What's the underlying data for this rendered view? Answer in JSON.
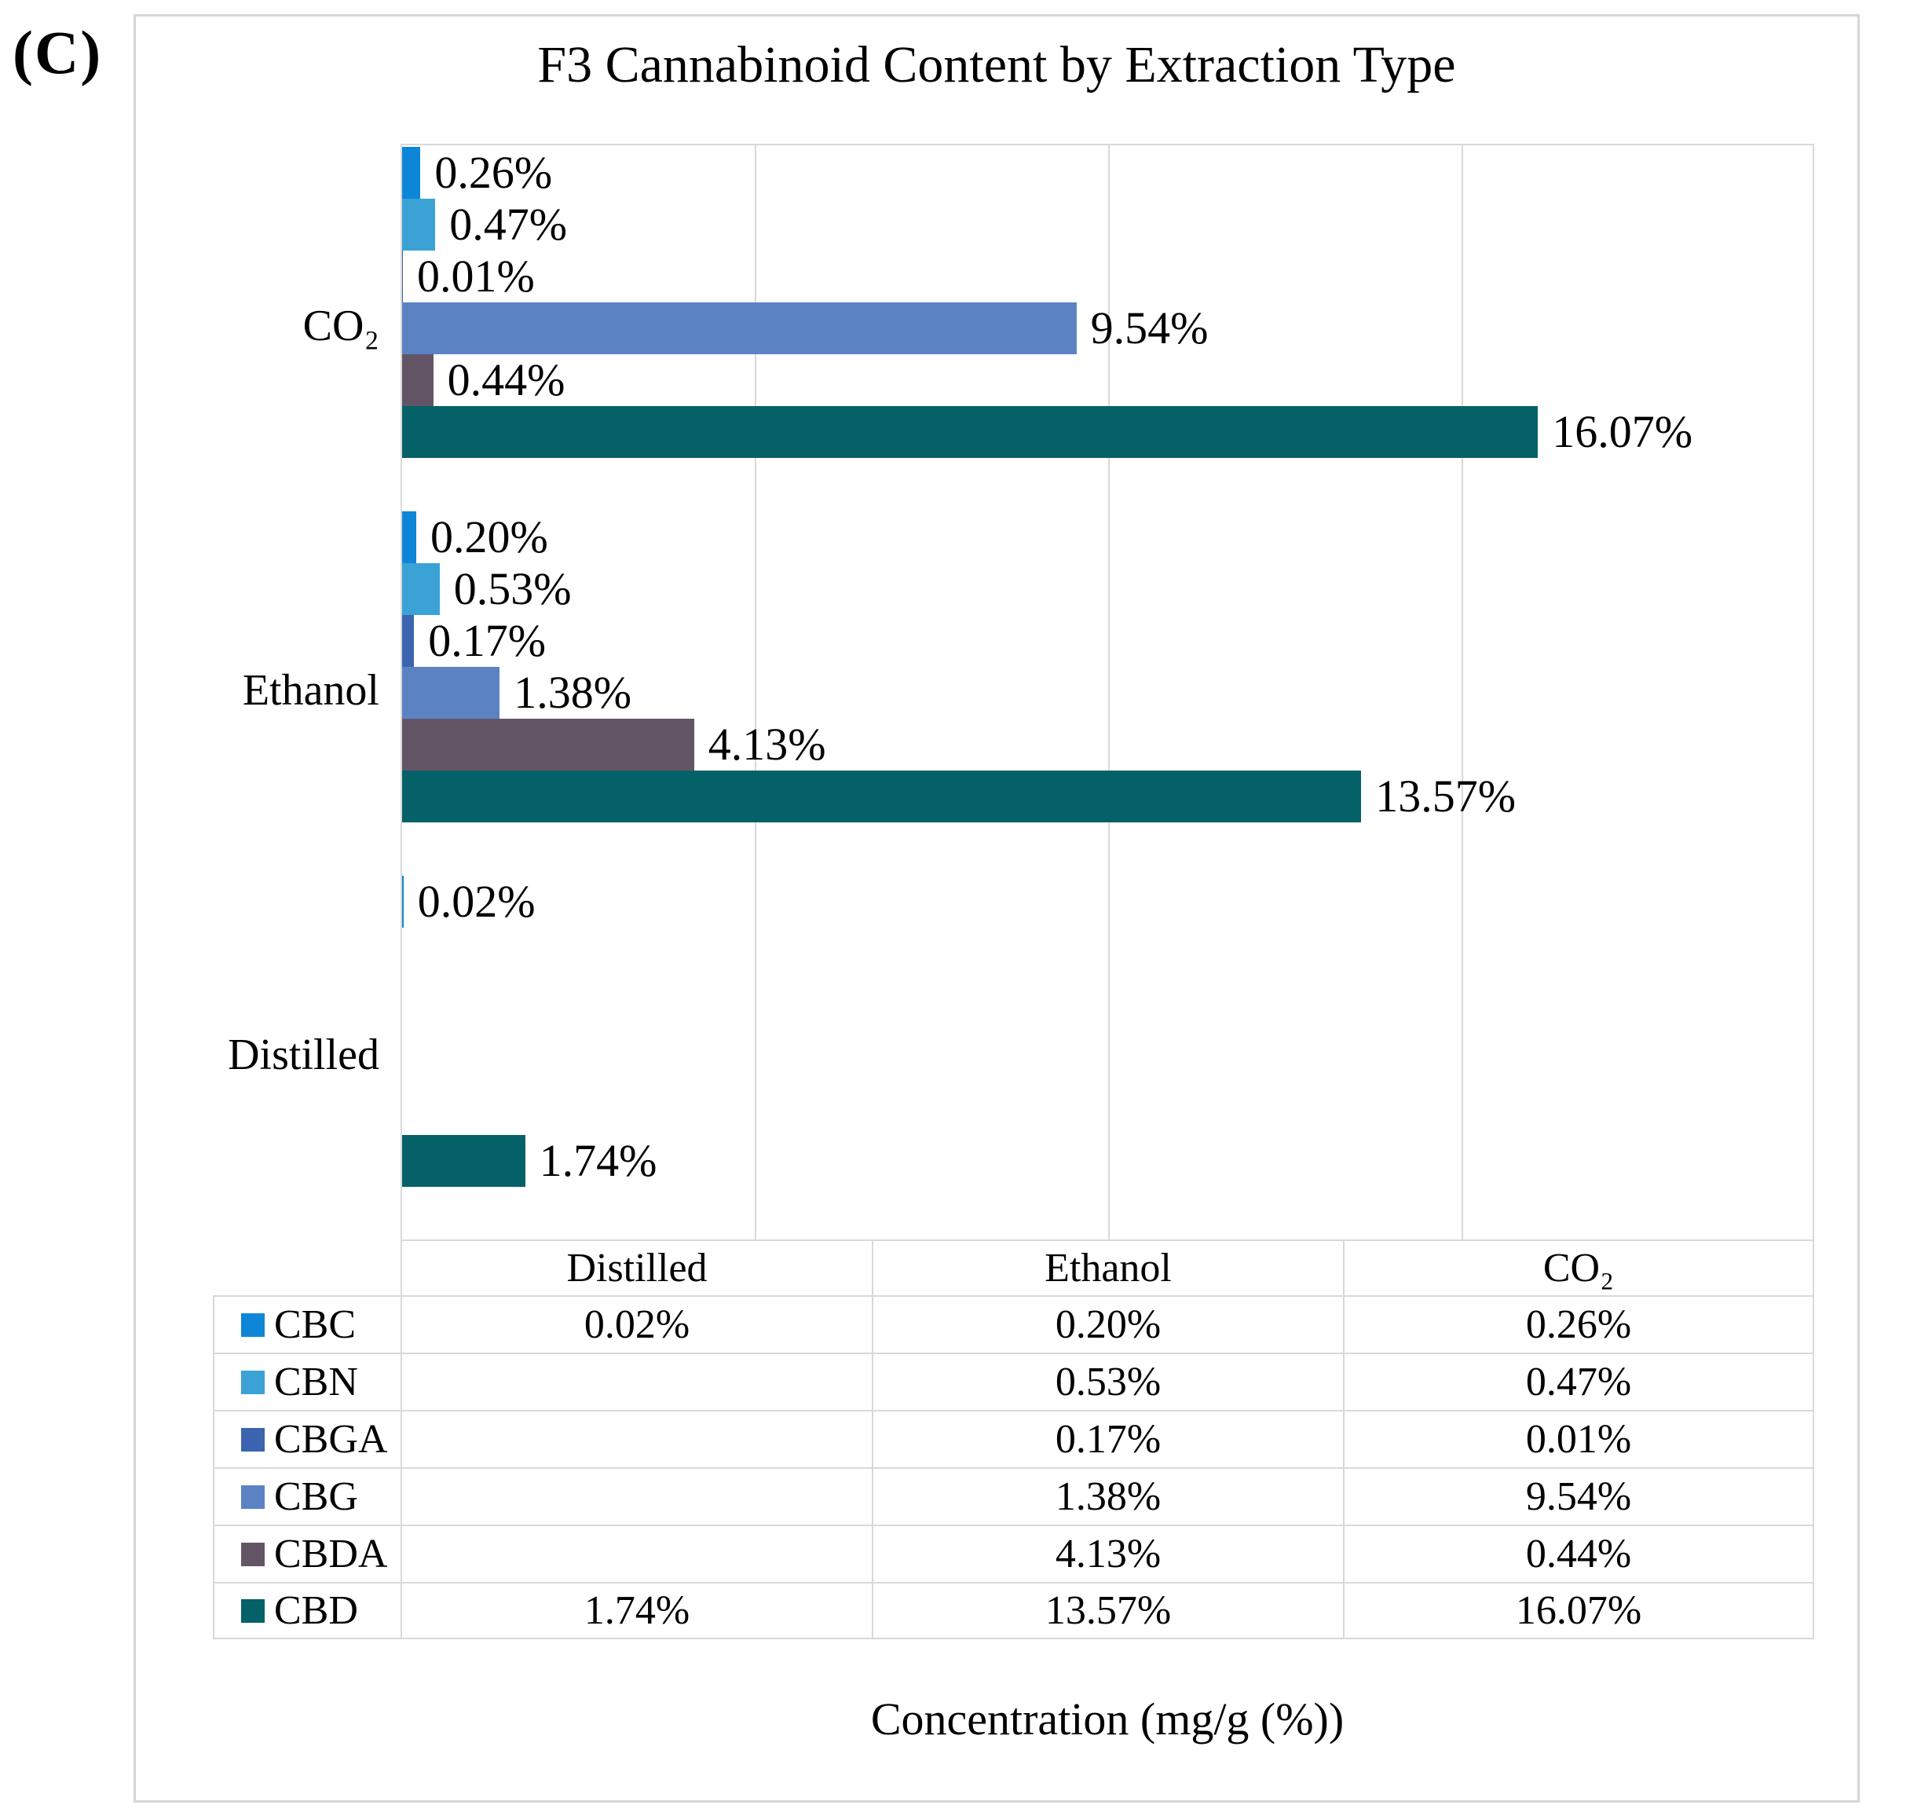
{
  "panel_label": "(C)",
  "chart_data": {
    "type": "bar",
    "orientation": "horizontal",
    "title": "F3 Cannabinoid Content by Extraction Type",
    "xlabel": "Concentration (mg/g (%))",
    "xlim": [
      0,
      20
    ],
    "gridline_step_pct": 5,
    "grid": true,
    "legend_position": "table-left-column",
    "categories": [
      "Distilled",
      "Ethanol",
      "CO₂"
    ],
    "category_axis_order_top_to_bottom": [
      "CO₂",
      "Ethanol",
      "Distilled"
    ],
    "series": [
      {
        "name": "CBC",
        "color": "#0e86d8",
        "values": [
          0.02,
          0.2,
          0.26
        ],
        "labels": [
          "0.02%",
          "0.20%",
          "0.26%"
        ]
      },
      {
        "name": "CBN",
        "color": "#3aa2d4",
        "values": [
          null,
          0.53,
          0.47
        ],
        "labels": [
          null,
          "0.53%",
          "0.47%"
        ]
      },
      {
        "name": "CBGA",
        "color": "#3c64b0",
        "values": [
          null,
          0.17,
          0.01
        ],
        "labels": [
          null,
          "0.17%",
          "0.01%"
        ]
      },
      {
        "name": "CBG",
        "color": "#5b83c4",
        "values": [
          null,
          1.38,
          9.54
        ],
        "labels": [
          null,
          "1.38%",
          "9.54%"
        ]
      },
      {
        "name": "CBDA",
        "color": "#645566",
        "values": [
          null,
          4.13,
          0.44
        ],
        "labels": [
          null,
          "4.13%",
          "0.44%"
        ]
      },
      {
        "name": "CBD",
        "color": "#046167",
        "values": [
          1.74,
          13.57,
          16.07
        ],
        "labels": [
          "1.74%",
          "13.57%",
          "16.07%"
        ]
      }
    ],
    "table": {
      "corner_label": "",
      "column_headers": [
        "Distilled",
        "Ethanol",
        "CO₂"
      ],
      "rows": [
        {
          "name": "CBC",
          "cells": [
            "0.02%",
            "0.20%",
            "0.26%"
          ]
        },
        {
          "name": "CBN",
          "cells": [
            "",
            "0.53%",
            "0.47%"
          ]
        },
        {
          "name": "CBGA",
          "cells": [
            "",
            "0.17%",
            "0.01%"
          ]
        },
        {
          "name": "CBG",
          "cells": [
            "",
            "1.38%",
            "9.54%"
          ]
        },
        {
          "name": "CBDA",
          "cells": [
            "",
            "4.13%",
            "0.44%"
          ]
        },
        {
          "name": "CBD",
          "cells": [
            "1.74%",
            "13.57%",
            "16.07%"
          ]
        }
      ]
    },
    "colors": {
      "gridline": "#d9d9d9",
      "table_border": "#d9d9d9",
      "panel_border": "#d6d6d6",
      "text": "#000000"
    }
  }
}
